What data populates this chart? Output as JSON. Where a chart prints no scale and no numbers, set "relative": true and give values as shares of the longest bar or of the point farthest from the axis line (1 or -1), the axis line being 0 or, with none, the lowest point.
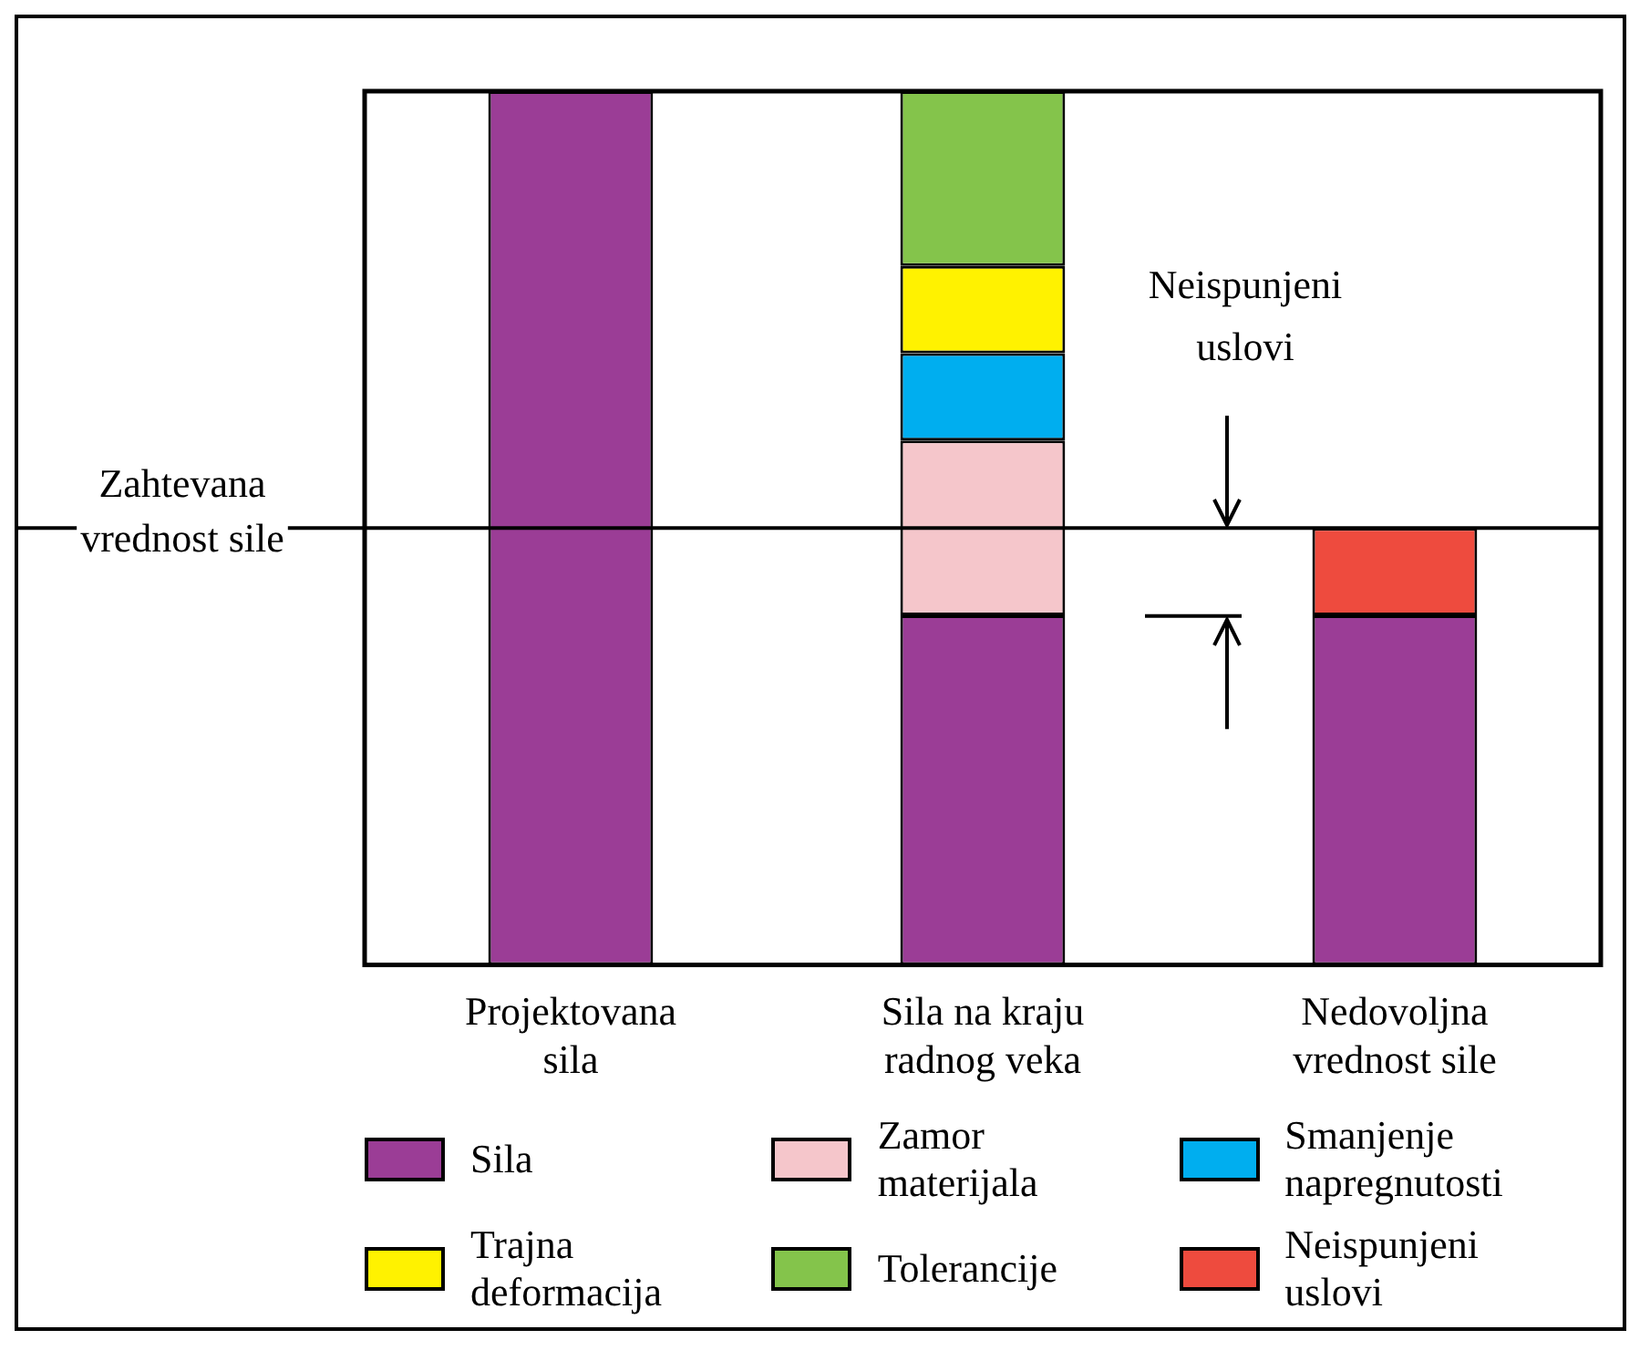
{
  "chart_data": {
    "type": "bar",
    "stacked": true,
    "relative": true,
    "legend": "bottom",
    "grid": false,
    "categories": [
      "Projektovana sila",
      "Sila na kraju radnog veka",
      "Nedovoljna vrednost sile"
    ],
    "series": [
      {
        "name": "Sila",
        "color": "#9b3d96",
        "values": [
          1,
          0.4,
          0.4
        ]
      },
      {
        "name": "Zamor materijala",
        "color": "#f5c6cb",
        "values": [
          null,
          0.2,
          null
        ]
      },
      {
        "name": "Smanjenje napregnutosti",
        "color": "#00aeef",
        "values": [
          null,
          0.1,
          null
        ]
      },
      {
        "name": "Trajna deformacija",
        "color": "#fff200",
        "values": [
          null,
          0.1,
          null
        ]
      },
      {
        "name": "Tolerancije",
        "color": "#84c44b",
        "values": [
          null,
          0.2,
          null
        ]
      },
      {
        "name": "Neispunjeni uslovi",
        "color": "#ee4b3e",
        "values": [
          null,
          null,
          0.1
        ]
      }
    ],
    "ref_lines": [
      {
        "axis": "y",
        "value": 0.5,
        "label": "Zahtevana vrednost sile",
        "color": "#000000"
      }
    ],
    "annotations": [
      "Neispunjeni uslovi"
    ]
  }
}
